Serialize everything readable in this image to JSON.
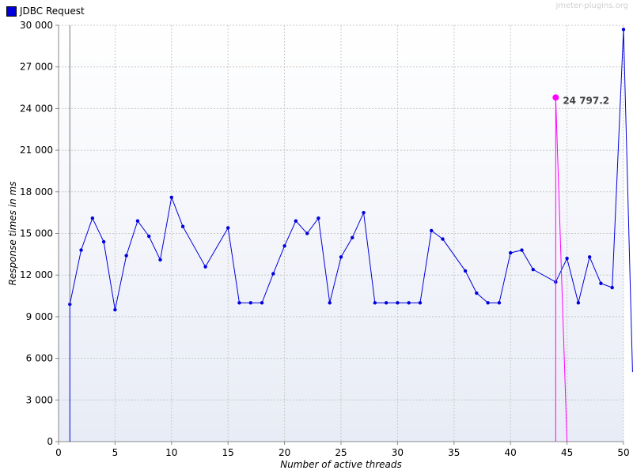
{
  "watermark": "jmeter-plugins.org",
  "colors": {
    "series": "#0000dd",
    "highlight": "#ff00ff",
    "grid": "#c8c8c8",
    "plot_bg_top": "#ffffff",
    "plot_bg_bottom": "#e8ecf6"
  },
  "chart_data": {
    "type": "line",
    "xlabel": "Number of active threads",
    "ylabel": "Response times in ms",
    "xlim": [
      0,
      50
    ],
    "ylim": [
      0,
      30000
    ],
    "x_ticks": [
      0,
      5,
      10,
      15,
      20,
      25,
      30,
      35,
      40,
      45,
      50
    ],
    "y_ticks": [
      0,
      3000,
      6000,
      9000,
      12000,
      15000,
      18000,
      21000,
      24000,
      27000,
      30000
    ],
    "y_tick_labels": [
      "0",
      "3 000",
      "6 000",
      "9 000",
      "12 000",
      "15 000",
      "18 000",
      "21 000",
      "24 000",
      "27 000",
      "30 000"
    ],
    "grid": true,
    "legend_position": "top-left",
    "series": [
      {
        "name": "JDBC Request",
        "color": "#0000dd",
        "points": [
          [
            1,
            0
          ],
          [
            1,
            9900
          ],
          [
            2,
            13800
          ],
          [
            3,
            16100
          ],
          [
            4,
            14400
          ],
          [
            5,
            9500
          ],
          [
            6,
            13400
          ],
          [
            7,
            15900
          ],
          [
            8,
            14800
          ],
          [
            9,
            13100
          ],
          [
            10,
            17600
          ],
          [
            11,
            15500
          ],
          [
            13,
            12600
          ],
          [
            15,
            15400
          ],
          [
            16,
            10000
          ],
          [
            17,
            10000
          ],
          [
            18,
            10000
          ],
          [
            19,
            12100
          ],
          [
            20,
            14100
          ],
          [
            21,
            15900
          ],
          [
            22,
            15000
          ],
          [
            23,
            16100
          ],
          [
            24,
            10000
          ],
          [
            25,
            13300
          ],
          [
            26,
            14700
          ],
          [
            27,
            16500
          ],
          [
            28,
            10000
          ],
          [
            29,
            10000
          ],
          [
            30,
            10000
          ],
          [
            31,
            10000
          ],
          [
            32,
            10000
          ],
          [
            33,
            15200
          ],
          [
            34,
            14600
          ],
          [
            36,
            12300
          ],
          [
            37,
            10700
          ],
          [
            38,
            10000
          ],
          [
            39,
            10000
          ],
          [
            40,
            13600
          ],
          [
            41,
            13800
          ],
          [
            42,
            12400
          ],
          [
            44,
            11500
          ],
          [
            45,
            13200
          ],
          [
            46,
            10000
          ],
          [
            47,
            13300
          ],
          [
            48,
            11400
          ],
          [
            49,
            11100
          ],
          [
            50,
            29700
          ],
          [
            50.8,
            5000
          ]
        ]
      },
      {
        "name": "highlight",
        "color": "#ff00ff",
        "points": [
          [
            44,
            0
          ],
          [
            44,
            24797.2
          ],
          [
            45,
            0
          ]
        ]
      }
    ],
    "annotation": {
      "x": 44,
      "y": 24797.2,
      "label": "24 797.2"
    }
  }
}
